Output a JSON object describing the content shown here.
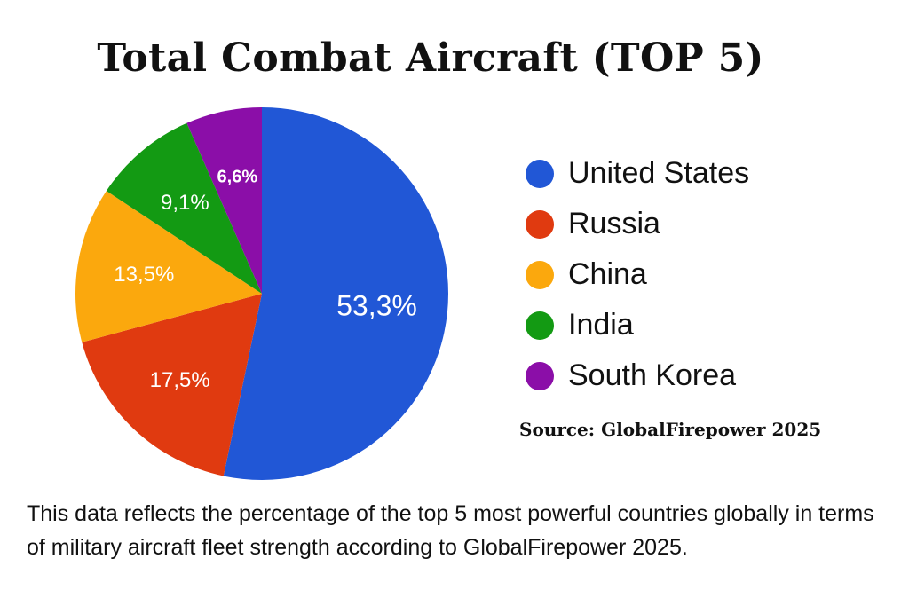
{
  "chart_data": {
    "type": "pie",
    "title": "Total Combat Aircraft (TOP 5)",
    "categories": [
      "United States",
      "Russia",
      "China",
      "India",
      "South Korea"
    ],
    "values": [
      53.3,
      17.5,
      13.5,
      9.1,
      6.6
    ],
    "data_labels": [
      "53,3%",
      "17,5%",
      "13,5%",
      "9,1%",
      "6,6%"
    ],
    "colors": [
      "#2157d6",
      "#e03a10",
      "#fba80d",
      "#139a13",
      "#8b0ea8"
    ],
    "start_angle_deg": 0,
    "direction": "clockwise",
    "legend_position": "right"
  },
  "source": "Source: GlobalFirepower 2025",
  "caption": "This data reflects the percentage of the top 5 most powerful countries globally in terms of military aircraft fleet strength according to GlobalFirepower 2025."
}
